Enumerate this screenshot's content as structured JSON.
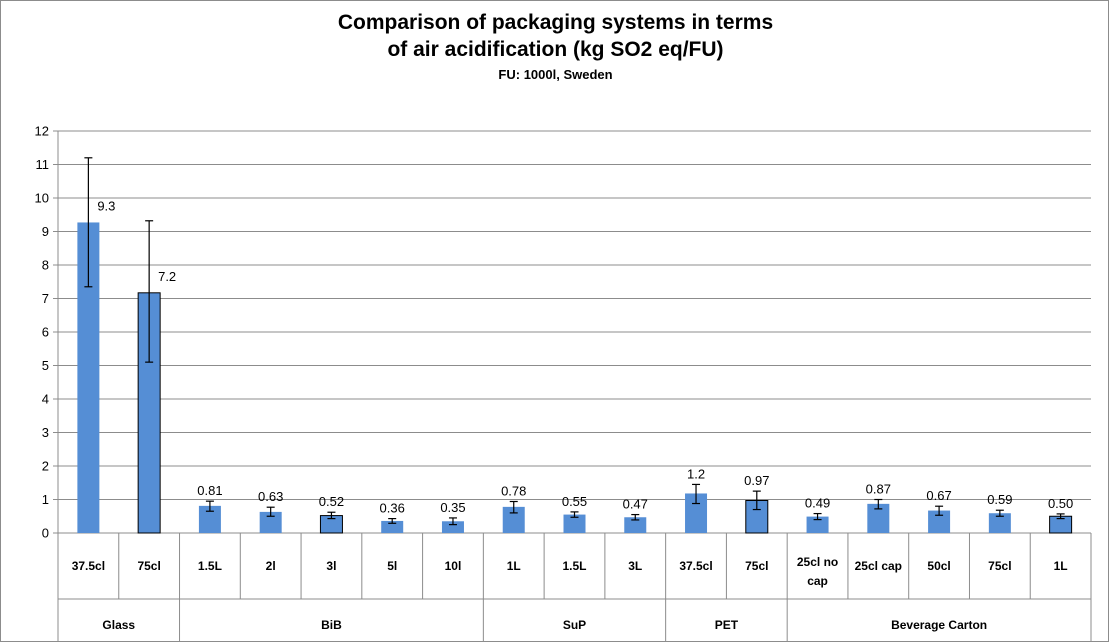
{
  "chart_data": {
    "type": "bar",
    "title_lines": [
      "Comparison of packaging systems in terms",
      "of air acidification (kg SO2 eq/FU)"
    ],
    "subtitle": "FU: 1000l, Sweden",
    "ylim": [
      0,
      12
    ],
    "y_ticks": [
      "0",
      "1",
      "2",
      "3",
      "4",
      "5",
      "6",
      "7",
      "8",
      "9",
      "10",
      "11",
      "12"
    ],
    "grid": true,
    "legend": "none",
    "bar_color": "#558ed5",
    "categories": [
      {
        "group": "Glass",
        "label": "37.5cl",
        "value": 9.27,
        "label_text": "9.3",
        "err_low": 7.35,
        "err_high": 11.2,
        "outlined": false
      },
      {
        "group": "Glass",
        "label": "75cl",
        "value": 7.17,
        "label_text": "7.2",
        "err_low": 5.1,
        "err_high": 9.32,
        "outlined": true
      },
      {
        "group": "BiB",
        "label": "1.5L",
        "value": 0.81,
        "label_text": "0.81",
        "err_low": 0.65,
        "err_high": 0.95,
        "outlined": false
      },
      {
        "group": "BiB",
        "label": "2l",
        "value": 0.63,
        "label_text": "0.63",
        "err_low": 0.5,
        "err_high": 0.77,
        "outlined": false
      },
      {
        "group": "BiB",
        "label": "3l",
        "value": 0.52,
        "label_text": "0.52",
        "err_low": 0.43,
        "err_high": 0.62,
        "outlined": true
      },
      {
        "group": "BiB",
        "label": "5l",
        "value": 0.36,
        "label_text": "0.36",
        "err_low": 0.29,
        "err_high": 0.43,
        "outlined": false
      },
      {
        "group": "BiB",
        "label": "10l",
        "value": 0.35,
        "label_text": "0.35",
        "err_low": 0.25,
        "err_high": 0.45,
        "outlined": false
      },
      {
        "group": "SuP",
        "label": "1L",
        "value": 0.78,
        "label_text": "0.78",
        "err_low": 0.6,
        "err_high": 0.94,
        "outlined": false
      },
      {
        "group": "SuP",
        "label": "1.5L",
        "value": 0.55,
        "label_text": "0.55",
        "err_low": 0.47,
        "err_high": 0.63,
        "outlined": false
      },
      {
        "group": "SuP",
        "label": "3L",
        "value": 0.47,
        "label_text": "0.47",
        "err_low": 0.39,
        "err_high": 0.55,
        "outlined": false
      },
      {
        "group": "PET",
        "label": "37.5cl",
        "value": 1.18,
        "label_text": "1.2",
        "err_low": 0.88,
        "err_high": 1.45,
        "outlined": false
      },
      {
        "group": "PET",
        "label": "75cl",
        "value": 0.97,
        "label_text": "0.97",
        "err_low": 0.7,
        "err_high": 1.25,
        "outlined": true
      },
      {
        "group": "Beverage Carton",
        "label": "25cl no cap",
        "value": 0.49,
        "label_text": "0.49",
        "err_low": 0.4,
        "err_high": 0.58,
        "outlined": false
      },
      {
        "group": "Beverage Carton",
        "label": "25cl cap",
        "value": 0.87,
        "label_text": "0.87",
        "err_low": 0.72,
        "err_high": 1.0,
        "outlined": false
      },
      {
        "group": "Beverage Carton",
        "label": "50cl",
        "value": 0.67,
        "label_text": "0.67",
        "err_low": 0.53,
        "err_high": 0.8,
        "outlined": false
      },
      {
        "group": "Beverage Carton",
        "label": "75cl",
        "value": 0.59,
        "label_text": "0.59",
        "err_low": 0.5,
        "err_high": 0.68,
        "outlined": false
      },
      {
        "group": "Beverage Carton",
        "label": "1L",
        "value": 0.5,
        "label_text": "0.50",
        "err_low": 0.43,
        "err_high": 0.57,
        "outlined": true
      }
    ],
    "groups": [
      "Glass",
      "BiB",
      "SuP",
      "PET",
      "Beverage Carton"
    ]
  }
}
